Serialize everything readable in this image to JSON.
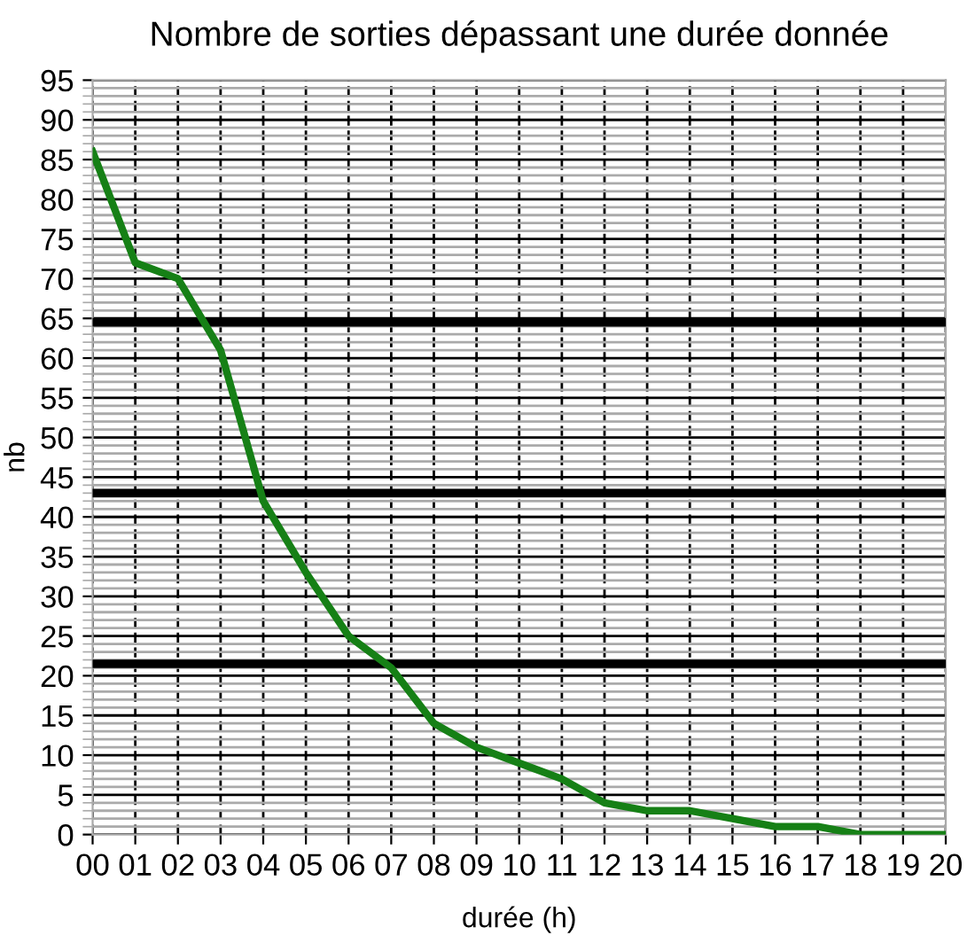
{
  "chart_data": {
    "type": "line",
    "title": "Nombre de sorties dépassant une durée donnée",
    "xlabel": "durée (h)",
    "ylabel": "nb",
    "categories": [
      "00",
      "01",
      "02",
      "03",
      "04",
      "05",
      "06",
      "07",
      "08",
      "09",
      "10",
      "11",
      "12",
      "13",
      "14",
      "15",
      "16",
      "17",
      "18",
      "19",
      "20"
    ],
    "series": [
      {
        "color": "#168016",
        "values": [
          86,
          72,
          70,
          61,
          42,
          33,
          25,
          21,
          14,
          11,
          9,
          7,
          4,
          3,
          3,
          2,
          1,
          1,
          0,
          0,
          0
        ]
      }
    ],
    "ylim": [
      0,
      95
    ],
    "yticks": [
      0,
      5,
      10,
      15,
      20,
      25,
      30,
      35,
      40,
      45,
      50,
      55,
      60,
      65,
      70,
      75,
      80,
      85,
      90,
      95
    ],
    "ref_lines": [
      {
        "axis": "y",
        "value": 64.5,
        "color": "#000000"
      },
      {
        "axis": "y",
        "value": 43,
        "color": "#000000"
      },
      {
        "axis": "y",
        "value": 21.5,
        "color": "#000000"
      }
    ],
    "grid": true,
    "marker": "none",
    "line_style": "solid"
  }
}
